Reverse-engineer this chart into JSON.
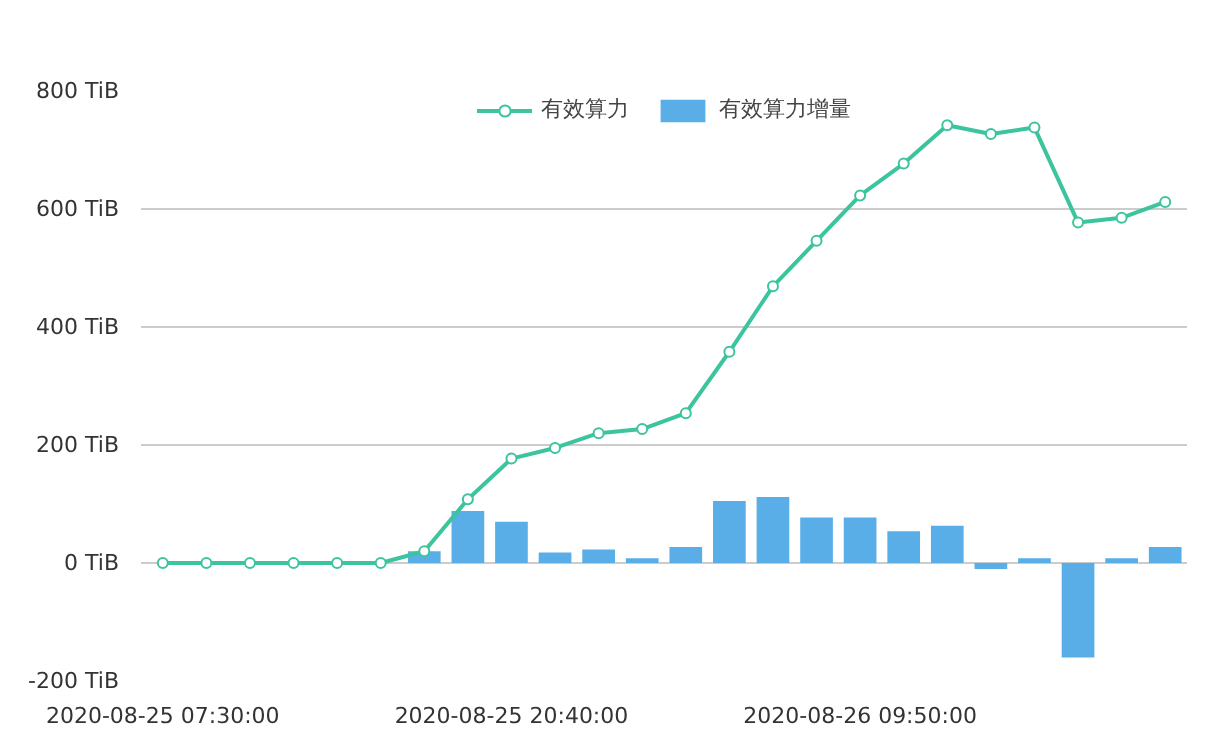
{
  "chart_data": {
    "type": "line",
    "categories": [
      "2020-08-25 07:30:00",
      null,
      null,
      null,
      null,
      null,
      null,
      null,
      "2020-08-25 20:40:00",
      null,
      null,
      null,
      null,
      null,
      null,
      null,
      "2020-08-26 09:50:00",
      null,
      null,
      null,
      null,
      null,
      null,
      null
    ],
    "series": [
      {
        "name": "有效算力",
        "type": "line",
        "color": "#3cc49e",
        "marker": "circle",
        "values": [
          0,
          0,
          0,
          0,
          0,
          0,
          20,
          108,
          177,
          195,
          220,
          227,
          254,
          358,
          469,
          546,
          623,
          677,
          742,
          727,
          738,
          577,
          585,
          612
        ]
      },
      {
        "name": "有效算力增量",
        "type": "bar",
        "color": "#5aaee8",
        "values": [
          0,
          0,
          0,
          0,
          0,
          0,
          20,
          88,
          70,
          18,
          23,
          8,
          27,
          105,
          112,
          77,
          77,
          54,
          63,
          -10,
          8,
          -160,
          8,
          27
        ]
      }
    ],
    "ylim": [
      -200,
      800
    ],
    "yticks": [
      {
        "value": -200,
        "label": "-200 TiB"
      },
      {
        "value": 0,
        "label": "0 TiB"
      },
      {
        "value": 200,
        "label": "200 TiB"
      },
      {
        "value": 400,
        "label": "400 TiB"
      },
      {
        "value": 600,
        "label": "600 TiB"
      },
      {
        "value": 800,
        "label": "800 TiB"
      }
    ],
    "grid": "y",
    "legend": "top"
  }
}
